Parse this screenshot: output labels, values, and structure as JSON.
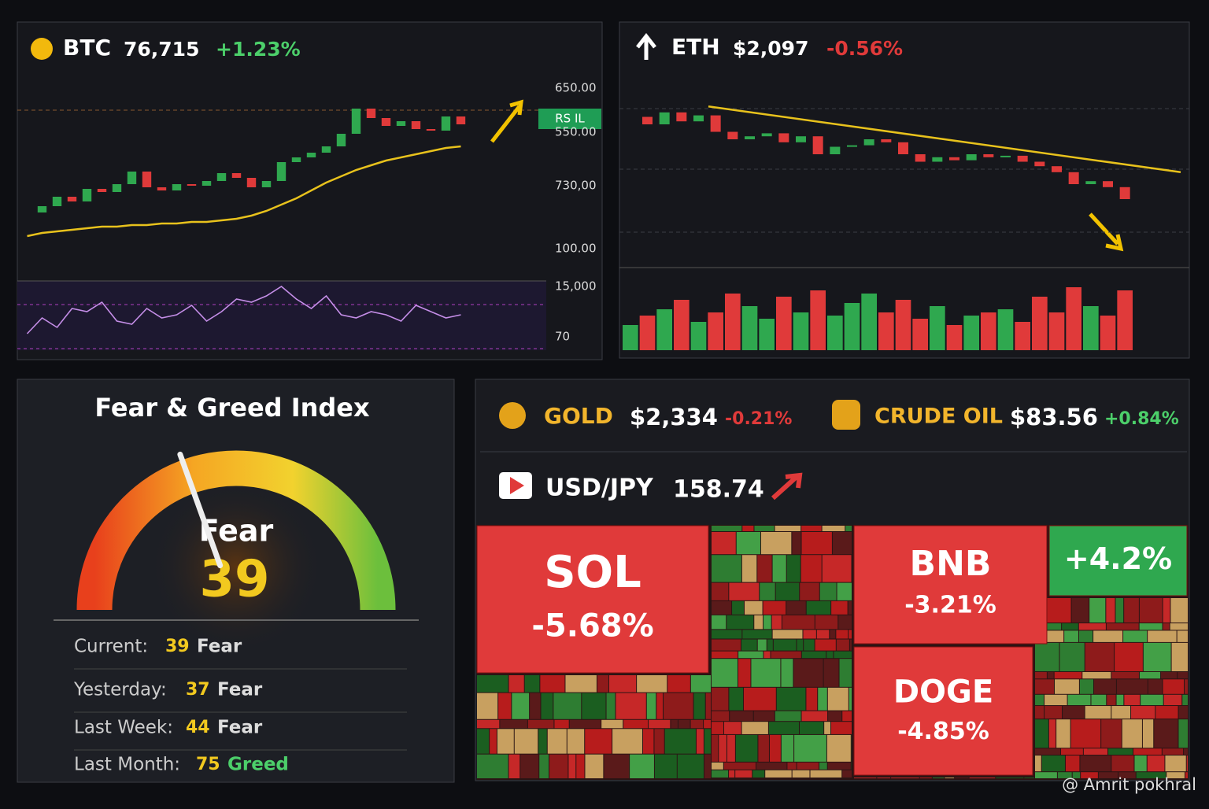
{
  "btc": {
    "symbol": "BTC",
    "price": "76,715",
    "change": "+1.23%",
    "axis_labels": [
      "650.00",
      "550.00",
      "730,00",
      "100.00",
      "15,000",
      "70"
    ],
    "badge": "RS IL",
    "ylim": [
      0,
      100
    ],
    "closes": [
      20,
      24,
      30,
      27,
      35,
      33,
      38,
      46,
      36,
      34,
      38,
      37,
      40,
      45,
      42,
      36,
      40,
      52,
      55,
      58,
      62,
      70,
      86,
      80,
      75,
      78,
      73,
      72,
      81,
      76
    ],
    "ma": [
      5,
      7,
      8,
      9,
      10,
      11,
      11,
      12,
      12,
      13,
      13,
      14,
      14,
      15,
      16,
      18,
      21,
      25,
      29,
      34,
      39,
      43,
      47,
      50,
      53,
      55,
      57,
      59,
      61,
      62
    ],
    "rsi": [
      20,
      45,
      30,
      60,
      55,
      70,
      40,
      35,
      60,
      45,
      50,
      65,
      40,
      55,
      75,
      70,
      80,
      95,
      75,
      60,
      80,
      50,
      45,
      55,
      50,
      40,
      65,
      55,
      45,
      50
    ]
  },
  "eth": {
    "symbol": "ETH",
    "price": "$2,097",
    "change": "-0.56%",
    "ylim": [
      0,
      100
    ],
    "closes": [
      85,
      80,
      88,
      82,
      86,
      75,
      70,
      72,
      74,
      68,
      72,
      60,
      65,
      66,
      70,
      68,
      60,
      55,
      58,
      56,
      60,
      58,
      59,
      55,
      52,
      48,
      40,
      42,
      38,
      30
    ],
    "trend": [
      92,
      48
    ],
    "volume": [
      40,
      55,
      65,
      80,
      45,
      60,
      90,
      70,
      50,
      85,
      60,
      95,
      55,
      75,
      90,
      60,
      80,
      50,
      70,
      40,
      55,
      60,
      65,
      45,
      85,
      60,
      100,
      70,
      55,
      95
    ]
  },
  "fear_greed": {
    "title": "Fear & Greed Index",
    "label": "Fear",
    "value": 39,
    "range": [
      0,
      100
    ],
    "history": [
      {
        "label": "Current:",
        "value": 39,
        "class": "Fear"
      },
      {
        "label": "Yesterday:",
        "value": 37,
        "class": "Fear"
      },
      {
        "label": "Last Week:",
        "value": 44,
        "class": "Fear"
      },
      {
        "label": "Last Month:",
        "value": 75,
        "class": "Greed"
      }
    ]
  },
  "markets": {
    "gold": {
      "name": "GOLD",
      "price": "$2,334",
      "change": "-0.21%"
    },
    "oil": {
      "name": "CRUDE OIL",
      "price": "$83.56",
      "change": "+0.84%"
    },
    "usdjpy": {
      "name": "USD/JPY",
      "price": "158.74"
    }
  },
  "heatmap": [
    {
      "name": "SOL",
      "change": "-5.68%"
    },
    {
      "name": "BNB",
      "change": "-3.21%"
    },
    {
      "change": "+4.2%"
    },
    {
      "name": "DOGE",
      "change": "-4.85%"
    }
  ],
  "watermark": "@ Amrit pokhral"
}
